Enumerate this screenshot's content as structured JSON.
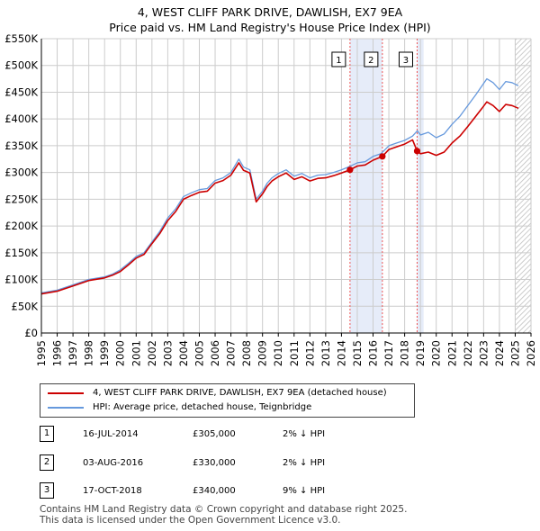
{
  "title": "4, WEST CLIFF PARK DRIVE, DAWLISH, EX7 9EA",
  "subtitle": "Price paid vs. HM Land Registry's House Price Index (HPI)",
  "colors": {
    "property": "#cc0000",
    "hpi": "#6699dd",
    "shade": "#e6ecf9",
    "vline": "#ee5555",
    "grid": "#cccccc"
  },
  "legend": {
    "property_label": "4, WEST CLIFF PARK DRIVE, DAWLISH, EX7 9EA (detached house)",
    "hpi_label": "HPI: Average price, detached house, Teignbridge"
  },
  "sales": [
    {
      "num": "1",
      "date": "16-JUL-2014",
      "price": "£305,000",
      "hpi": "2% ↓ HPI"
    },
    {
      "num": "2",
      "date": "03-AUG-2016",
      "price": "£330,000",
      "hpi": "2% ↓ HPI"
    },
    {
      "num": "3",
      "date": "17-OCT-2018",
      "price": "£340,000",
      "hpi": "9% ↓ HPI"
    }
  ],
  "footer": {
    "line1": "Contains HM Land Registry data © Crown copyright and database right 2025.",
    "line2": "This data is licensed under the Open Government Licence v3.0."
  },
  "chart_data": {
    "type": "line",
    "xlim": [
      1995,
      2026
    ],
    "ylim": [
      0,
      550000
    ],
    "x_ticks": [
      "1995",
      "1996",
      "1997",
      "1998",
      "1999",
      "2000",
      "2001",
      "2002",
      "2003",
      "2004",
      "2005",
      "2006",
      "2007",
      "2008",
      "2009",
      "2010",
      "2011",
      "2012",
      "2013",
      "2014",
      "2015",
      "2016",
      "2017",
      "2018",
      "2019",
      "2020",
      "2021",
      "2022",
      "2023",
      "2024",
      "2025",
      "2026"
    ],
    "y_ticks": [
      {
        "value": 0,
        "label": "£0"
      },
      {
        "value": 50000,
        "label": "£50K"
      },
      {
        "value": 100000,
        "label": "£100K"
      },
      {
        "value": 150000,
        "label": "£150K"
      },
      {
        "value": 200000,
        "label": "£200K"
      },
      {
        "value": 250000,
        "label": "£250K"
      },
      {
        "value": 300000,
        "label": "£300K"
      },
      {
        "value": 350000,
        "label": "£350K"
      },
      {
        "value": 400000,
        "label": "£400K"
      },
      {
        "value": 450000,
        "label": "£450K"
      },
      {
        "value": 500000,
        "label": "£500K"
      },
      {
        "value": 550000,
        "label": "£550K"
      }
    ],
    "grid": true,
    "forecast_hatch_from": 2025.0,
    "shaded_ranges": [
      [
        2014.54,
        2016.59
      ],
      [
        2018.79,
        2019.2
      ]
    ],
    "markers": [
      {
        "label": "1",
        "x": 2014.54,
        "y": 305000
      },
      {
        "label": "2",
        "x": 2016.59,
        "y": 330000
      },
      {
        "label": "3",
        "x": 2018.79,
        "y": 340000
      }
    ],
    "series": [
      {
        "name": "HPI: Average price, detached house, Teignbridge",
        "x": [
          1995.0,
          1996.0,
          1997.0,
          1997.5,
          1998.0,
          1999.0,
          1999.5,
          2000.0,
          2000.5,
          2001.0,
          2001.5,
          2002.0,
          2002.5,
          2003.0,
          2003.5,
          2004.0,
          2004.5,
          2005.0,
          2005.5,
          2006.0,
          2006.5,
          2007.0,
          2007.5,
          2007.8,
          2008.2,
          2008.6,
          2009.0,
          2009.3,
          2009.6,
          2010.0,
          2010.5,
          2011.0,
          2011.5,
          2012.0,
          2012.5,
          2013.0,
          2013.5,
          2014.0,
          2014.5,
          2015.0,
          2015.5,
          2016.0,
          2016.5,
          2017.0,
          2017.5,
          2018.0,
          2018.5,
          2018.8,
          2019.0,
          2019.5,
          2020.0,
          2020.5,
          2021.0,
          2021.5,
          2022.0,
          2022.5,
          2022.9,
          2023.2,
          2023.6,
          2024.0,
          2024.4,
          2024.8,
          2025.2
        ],
        "values": [
          75000,
          80000,
          90000,
          95000,
          100000,
          105000,
          110000,
          118000,
          130000,
          143000,
          150000,
          170000,
          190000,
          215000,
          232000,
          255000,
          262000,
          268000,
          270000,
          285000,
          290000,
          300000,
          325000,
          310000,
          305000,
          250000,
          265000,
          280000,
          290000,
          298000,
          305000,
          293000,
          298000,
          290000,
          295000,
          296000,
          300000,
          305000,
          311000,
          318000,
          320000,
          330000,
          335000,
          350000,
          355000,
          360000,
          368000,
          378000,
          370000,
          375000,
          365000,
          372000,
          390000,
          405000,
          425000,
          445000,
          462000,
          475000,
          468000,
          455000,
          470000,
          468000,
          462000
        ]
      },
      {
        "name": "4, WEST CLIFF PARK DRIVE, DAWLISH, EX7 9EA (detached house)",
        "x": [
          1995.0,
          1996.0,
          1997.0,
          1997.5,
          1998.0,
          1999.0,
          1999.5,
          2000.0,
          2000.5,
          2001.0,
          2001.5,
          2002.0,
          2002.5,
          2003.0,
          2003.5,
          2004.0,
          2004.5,
          2005.0,
          2005.5,
          2006.0,
          2006.5,
          2007.0,
          2007.5,
          2007.8,
          2008.2,
          2008.6,
          2009.0,
          2009.3,
          2009.6,
          2010.0,
          2010.5,
          2011.0,
          2011.5,
          2012.0,
          2012.5,
          2013.0,
          2013.5,
          2014.0,
          2014.54,
          2015.0,
          2015.5,
          2016.0,
          2016.59,
          2017.0,
          2017.5,
          2018.0,
          2018.5,
          2018.79,
          2019.0,
          2019.5,
          2020.0,
          2020.5,
          2021.0,
          2021.5,
          2022.0,
          2022.5,
          2022.9,
          2023.2,
          2023.6,
          2024.0,
          2024.4,
          2024.8,
          2025.2
        ],
        "values": [
          73000,
          78000,
          88000,
          93000,
          98000,
          103000,
          108000,
          115000,
          127000,
          140000,
          147000,
          167000,
          186000,
          210000,
          227000,
          250000,
          257000,
          263000,
          265000,
          280000,
          285000,
          295000,
          318000,
          304000,
          299000,
          245000,
          260000,
          274000,
          284000,
          292000,
          299000,
          287000,
          292000,
          284000,
          289000,
          290000,
          294000,
          299000,
          305000,
          312000,
          314000,
          323000,
          330000,
          343000,
          348000,
          353000,
          361000,
          340000,
          335000,
          338000,
          332000,
          338000,
          355000,
          368000,
          386000,
          405000,
          420000,
          432000,
          425000,
          414000,
          427000,
          425000,
          420000
        ]
      }
    ]
  }
}
